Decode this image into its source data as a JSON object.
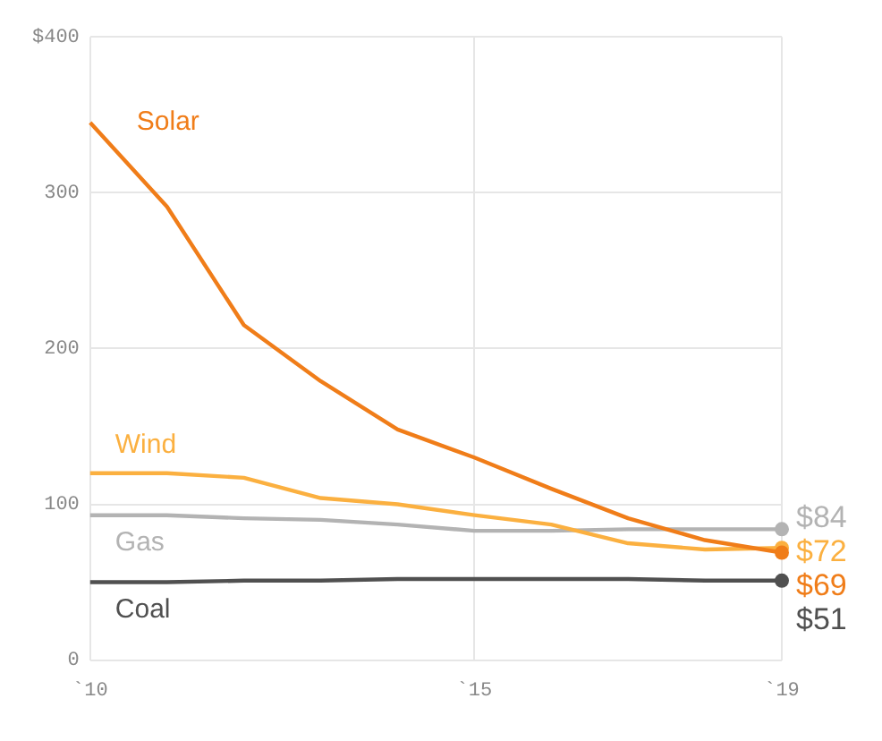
{
  "chart_data": {
    "type": "line",
    "categories": [
      "`10",
      null,
      null,
      null,
      null,
      "`15",
      null,
      null,
      null,
      "`19"
    ],
    "series": [
      {
        "name": "Solar",
        "color": "#f07d19",
        "values": [
          345,
          291,
          215,
          179,
          148,
          130,
          110,
          91,
          77,
          69
        ],
        "value_labels": [
          null,
          null,
          null,
          null,
          null,
          null,
          null,
          null,
          null,
          "$69"
        ]
      },
      {
        "name": "Wind",
        "color": "#fbb040",
        "values": [
          120,
          120,
          117,
          104,
          100,
          93,
          87,
          75,
          71,
          72
        ],
        "value_labels": [
          null,
          null,
          null,
          null,
          null,
          null,
          null,
          null,
          null,
          "$72"
        ]
      },
      {
        "name": "Gas",
        "color": "#b3b3b3",
        "values": [
          93,
          93,
          91,
          90,
          87,
          83,
          83,
          84,
          84,
          84
        ],
        "value_labels": [
          null,
          null,
          null,
          null,
          null,
          null,
          null,
          null,
          null,
          "$84"
        ]
      },
      {
        "name": "Coal",
        "color": "#505050",
        "values": [
          50,
          50,
          51,
          51,
          52,
          52,
          52,
          52,
          51,
          51
        ],
        "value_labels": [
          null,
          null,
          null,
          null,
          null,
          null,
          null,
          null,
          null,
          "$51"
        ]
      }
    ],
    "ylim": [
      0,
      400
    ],
    "yticks": [
      0,
      100,
      200,
      300,
      {
        "value": 400,
        "label": "$400"
      }
    ],
    "grid": true,
    "legend": false,
    "line_style": "solid"
  }
}
